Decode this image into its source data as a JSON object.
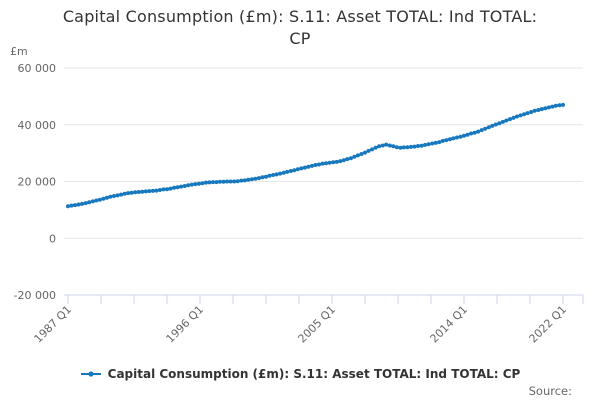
{
  "header": {
    "title_line1": "Capital Consumption (£m): S.11: Asset TOTAL: Ind TOTAL:",
    "title_line2": "CP"
  },
  "y_axis": {
    "unit_label": "£m",
    "tick_labels": [
      "60 000",
      "40 000",
      "20 000",
      "0",
      "-20 000"
    ],
    "tick_values": [
      60000,
      40000,
      20000,
      0,
      -20000
    ]
  },
  "x_axis": {
    "tick_labels": [
      "1987 Q1",
      "1996 Q1",
      "2005 Q1",
      "2014 Q1",
      "2022 Q1"
    ]
  },
  "legend": {
    "label": "Capital Consumption (£m): S.11: Asset TOTAL: Ind TOTAL: CP"
  },
  "footer": {
    "source_label": "Source:"
  },
  "colors": {
    "series": "#1778be",
    "grid": "#e6e6e6",
    "axis": "#ccd6eb",
    "axis_label": "#666666",
    "title": "#333333",
    "legend_text": "#333333",
    "source_text": "#666666"
  },
  "chart_data": {
    "type": "line",
    "title": "Capital Consumption (£m): S.11: Asset TOTAL: Ind TOTAL: CP",
    "ylabel": "£m",
    "ylim": [
      -20000,
      60000
    ],
    "y_tick_values": [
      60000,
      40000,
      20000,
      0,
      -20000
    ],
    "grid": "horizontal",
    "legend_position": "bottom",
    "marker": "circle",
    "frequency": "quarterly",
    "x_start": "1987 Q1",
    "x_end": "2022 Q1",
    "x_tick_labels": [
      "1987 Q1",
      "1996 Q1",
      "2005 Q1",
      "2014 Q1",
      "2022 Q1"
    ],
    "values": [
      11300,
      11500,
      11700,
      11900,
      12100,
      12400,
      12700,
      13000,
      13300,
      13600,
      13900,
      14300,
      14600,
      14900,
      15100,
      15400,
      15700,
      15900,
      16000,
      16200,
      16300,
      16400,
      16500,
      16600,
      16700,
      16800,
      17000,
      17200,
      17300,
      17500,
      17800,
      18000,
      18200,
      18400,
      18700,
      18900,
      19100,
      19200,
      19400,
      19600,
      19700,
      19800,
      19800,
      19900,
      19900,
      20000,
      20000,
      20000,
      20100,
      20300,
      20400,
      20600,
      20800,
      21000,
      21200,
      21500,
      21700,
      22000,
      22300,
      22500,
      22800,
      23100,
      23400,
      23700,
      24000,
      24300,
      24600,
      24900,
      25200,
      25500,
      25800,
      26000,
      26300,
      26400,
      26600,
      26800,
      26900,
      27200,
      27500,
      27900,
      28200,
      28700,
      29200,
      29700,
      30200,
      30800,
      31300,
      31900,
      32400,
      32700,
      33000,
      32700,
      32400,
      32100,
      31900,
      32000,
      32100,
      32200,
      32300,
      32500,
      32600,
      32900,
      33100,
      33400,
      33600,
      33900,
      34300,
      34600,
      34900,
      35200,
      35500,
      35800,
      36100,
      36500,
      36900,
      37200,
      37600,
      38100,
      38600,
      39100,
      39600,
      40100,
      40500,
      41000,
      41500,
      42000,
      42400,
      42900,
      43300,
      43700,
      44100,
      44500,
      44900,
      45200,
      45500,
      45800,
      46100,
      46400,
      46700,
      46900,
      47000
    ]
  }
}
